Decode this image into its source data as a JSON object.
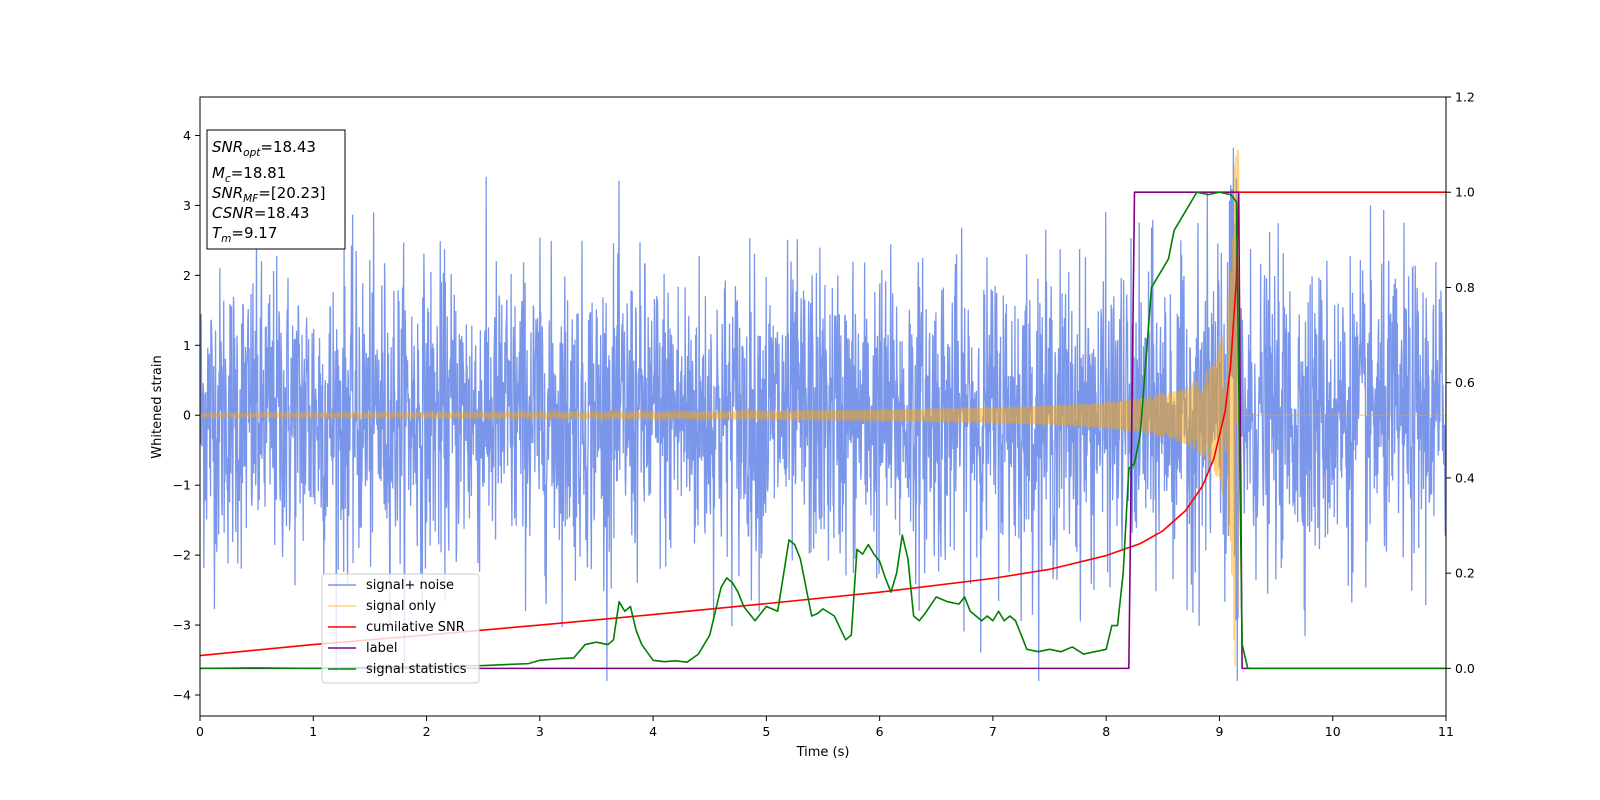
{
  "chart_data": {
    "type": "line",
    "xlabel": "Time (s)",
    "ylabel": "Whitened strain",
    "xlim": [
      0,
      11
    ],
    "ylim_left": [
      -4.3,
      4.55
    ],
    "ylim_right": [
      -0.1,
      1.2
    ],
    "x_ticks": [
      0,
      1,
      2,
      3,
      4,
      5,
      6,
      7,
      8,
      9,
      10,
      11
    ],
    "y_left_ticks": [
      -4,
      -3,
      -2,
      -1,
      0,
      1,
      2,
      3,
      4
    ],
    "y_right_ticks": [
      "0.0",
      "0.2",
      "0.4",
      "0.6",
      "0.8",
      "1.0",
      "1.2"
    ],
    "legend_position": "lower-left",
    "grid": false,
    "info_box": {
      "snr_opt": {
        "base": "SNR",
        "sub": "opt",
        "value": "=18.43"
      },
      "mc": {
        "base": "M",
        "sub": "c",
        "value": "=18.81"
      },
      "snr_mf": {
        "base": "SNR",
        "sub": "MF",
        "value": "=[20.23]"
      },
      "csnr": {
        "base": "CSNR",
        "sub": "",
        "value": "=18.43"
      },
      "tm": {
        "base": "T",
        "sub": "m",
        "value": "=9.17"
      }
    },
    "series": [
      {
        "name": "signal+ noise",
        "axis": "left",
        "color": "#4169e1",
        "description_range": [
          -3.8,
          4.2
        ],
        "noise_std": 1.05,
        "x_range": [
          0,
          11
        ]
      },
      {
        "name": "signal only",
        "axis": "left",
        "color": "#ffa500",
        "merger_time": 9.17,
        "peak_amplitude": 3.8,
        "early_amplitude": 0.03,
        "x_range": [
          0,
          11
        ]
      },
      {
        "name": "cumilative SNR",
        "axis": "right",
        "color": "#ff0000",
        "x": [
          0,
          1,
          2,
          3,
          4,
          5,
          6,
          7,
          7.5,
          8,
          8.3,
          8.5,
          8.7,
          8.85,
          8.95,
          9.05,
          9.1,
          9.15,
          9.17,
          9.2,
          11
        ],
        "y": [
          0.027,
          0.05,
          0.07,
          0.091,
          0.113,
          0.136,
          0.16,
          0.189,
          0.208,
          0.237,
          0.262,
          0.289,
          0.331,
          0.383,
          0.44,
          0.54,
          0.64,
          0.82,
          1.0,
          1.0,
          1.0
        ]
      },
      {
        "name": "label",
        "axis": "right",
        "color": "#800080",
        "x": [
          0,
          8.2,
          8.25,
          9.17,
          9.2,
          11
        ],
        "y": [
          0,
          0,
          1,
          1,
          0,
          0
        ]
      },
      {
        "name": "signal statistics",
        "axis": "right",
        "color": "#008000",
        "x": [
          0,
          0.5,
          1.0,
          2.0,
          2.5,
          2.9,
          3.0,
          3.2,
          3.3,
          3.4,
          3.5,
          3.6,
          3.65,
          3.7,
          3.75,
          3.8,
          3.85,
          3.9,
          4.0,
          4.1,
          4.2,
          4.3,
          4.4,
          4.5,
          4.6,
          4.65,
          4.7,
          4.75,
          4.8,
          4.9,
          5.0,
          5.1,
          5.2,
          5.25,
          5.3,
          5.4,
          5.45,
          5.5,
          5.6,
          5.7,
          5.75,
          5.8,
          5.85,
          5.9,
          5.95,
          6.0,
          6.05,
          6.1,
          6.15,
          6.2,
          6.25,
          6.3,
          6.35,
          6.4,
          6.5,
          6.6,
          6.7,
          6.75,
          6.8,
          6.85,
          6.9,
          6.95,
          7.0,
          7.05,
          7.1,
          7.15,
          7.2,
          7.3,
          7.4,
          7.5,
          7.6,
          7.7,
          7.8,
          7.9,
          8.0,
          8.05,
          8.1,
          8.15,
          8.2,
          8.25,
          8.3,
          8.4,
          8.5,
          8.55,
          8.6,
          8.7,
          8.75,
          8.8,
          8.9,
          9.0,
          9.1,
          9.15,
          9.2,
          9.25,
          11
        ],
        "y": [
          0.0,
          0.001,
          0.0,
          0.004,
          0.006,
          0.01,
          0.017,
          0.021,
          0.022,
          0.05,
          0.055,
          0.05,
          0.06,
          0.14,
          0.12,
          0.13,
          0.08,
          0.05,
          0.017,
          0.014,
          0.016,
          0.013,
          0.03,
          0.07,
          0.17,
          0.19,
          0.18,
          0.16,
          0.13,
          0.1,
          0.13,
          0.12,
          0.27,
          0.26,
          0.23,
          0.11,
          0.115,
          0.125,
          0.11,
          0.06,
          0.07,
          0.25,
          0.24,
          0.26,
          0.24,
          0.225,
          0.19,
          0.16,
          0.2,
          0.28,
          0.23,
          0.11,
          0.1,
          0.115,
          0.15,
          0.14,
          0.135,
          0.15,
          0.12,
          0.11,
          0.1,
          0.11,
          0.1,
          0.12,
          0.1,
          0.11,
          0.1,
          0.04,
          0.035,
          0.04,
          0.035,
          0.045,
          0.03,
          0.035,
          0.04,
          0.09,
          0.09,
          0.2,
          0.42,
          0.43,
          0.49,
          0.8,
          0.84,
          0.86,
          0.92,
          0.96,
          0.98,
          1.0,
          0.995,
          1.0,
          0.995,
          0.98,
          0.05,
          0.0,
          0.0
        ]
      }
    ]
  }
}
